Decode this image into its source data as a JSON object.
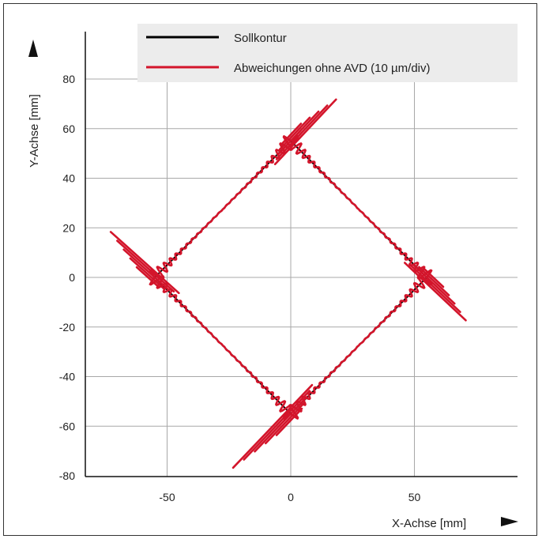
{
  "chart_data": {
    "type": "line",
    "title": "",
    "xlabel": "X-Achse [mm]",
    "ylabel": "Y-Achse [mm]",
    "xlim": [
      -82,
      90
    ],
    "ylim": [
      -81,
      95
    ],
    "xticks": [
      -50,
      0,
      50
    ],
    "yticks": [
      -80,
      -60,
      -40,
      -20,
      0,
      20,
      40,
      60,
      80
    ],
    "grid": true,
    "legend_position": "top-right",
    "colors": {
      "Sollkontur": "#000000",
      "Abweichungen": "#d3152b",
      "legend_bg": "#ececec"
    },
    "series": [
      {
        "name": "Sollkontur",
        "x": [
          0,
          55,
          0,
          -55,
          0
        ],
        "y": [
          55,
          0,
          -55,
          0,
          55
        ]
      },
      {
        "name": "Abweichungen ohne AVD (10 µm/div)",
        "x": [
          0,
          17,
          0,
          55,
          72,
          55,
          0,
          -22,
          0,
          -55,
          -74,
          -55,
          0
        ],
        "y": [
          55,
          73,
          55,
          0,
          -16,
          0,
          -55,
          -78,
          -55,
          0,
          17,
          0,
          55
        ]
      }
    ]
  },
  "legend": {
    "items": [
      {
        "label": "Sollkontur"
      },
      {
        "label": "Abweichungen ohne AVD (10 µm/div)"
      }
    ]
  },
  "axes": {
    "x_arrow_icon": "arrow-right-icon",
    "y_arrow_icon": "arrow-up-icon"
  }
}
